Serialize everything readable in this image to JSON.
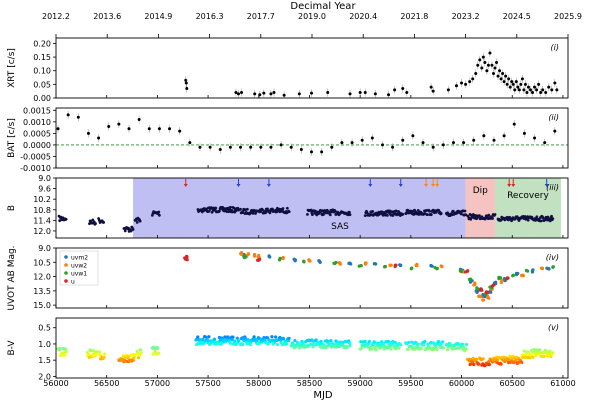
{
  "figure": {
    "top_axis_label": "Decimal Year",
    "top_ticks": [
      "2012.2",
      "2013.6",
      "2014.9",
      "2016.3",
      "2017.7",
      "2019.0",
      "2020.4",
      "2021.8",
      "2023.2",
      "2024.5",
      "2025.9"
    ],
    "bottom_axis_label": "MJD",
    "bottom_ticks": [
      "56000",
      "56500",
      "57000",
      "57500",
      "58000",
      "58500",
      "59000",
      "59500",
      "60000",
      "60500",
      "61000"
    ]
  },
  "chart_data": [
    {
      "panel": "(i)",
      "type": "scatter",
      "ylabel": "XRT [c/s]",
      "xlim": [
        56000,
        61050
      ],
      "ylim": [
        0,
        0.22
      ],
      "yticks": [
        "0.00",
        "0.05",
        "0.10",
        "0.15",
        "0.20"
      ],
      "ytick_values": [
        0,
        0.05,
        0.1,
        0.15,
        0.2
      ],
      "points": [
        [
          57280,
          0.065
        ],
        [
          57285,
          0.055
        ],
        [
          57290,
          0.035
        ],
        [
          57775,
          0.02
        ],
        [
          57800,
          0.015
        ],
        [
          57830,
          0.02
        ],
        [
          57960,
          0.015
        ],
        [
          58010,
          0.012
        ],
        [
          58050,
          0.018
        ],
        [
          58120,
          0.015
        ],
        [
          58150,
          0.02
        ],
        [
          58250,
          0.01
        ],
        [
          58400,
          0.015
        ],
        [
          58520,
          0.018
        ],
        [
          58680,
          0.02
        ],
        [
          58900,
          0.015
        ],
        [
          59000,
          0.02
        ],
        [
          59050,
          0.02
        ],
        [
          59150,
          0.015
        ],
        [
          59280,
          0.012
        ],
        [
          59340,
          0.03
        ],
        [
          59420,
          0.035
        ],
        [
          59460,
          0.02
        ],
        [
          59700,
          0.04
        ],
        [
          59720,
          0.025
        ],
        [
          59870,
          0.03
        ],
        [
          59950,
          0.045
        ],
        [
          60000,
          0.055
        ],
        [
          60040,
          0.05
        ],
        [
          60080,
          0.06
        ],
        [
          60110,
          0.07
        ],
        [
          60140,
          0.09
        ],
        [
          60160,
          0.12
        ],
        [
          60180,
          0.14
        ],
        [
          60200,
          0.11
        ],
        [
          60215,
          0.15
        ],
        [
          60230,
          0.13
        ],
        [
          60250,
          0.1
        ],
        [
          60265,
          0.12
        ],
        [
          60280,
          0.165
        ],
        [
          60300,
          0.12
        ],
        [
          60315,
          0.09
        ],
        [
          60330,
          0.11
        ],
        [
          60345,
          0.13
        ],
        [
          60360,
          0.08
        ],
        [
          60375,
          0.1
        ],
        [
          60390,
          0.07
        ],
        [
          60405,
          0.09
        ],
        [
          60420,
          0.06
        ],
        [
          60435,
          0.08
        ],
        [
          60450,
          0.05
        ],
        [
          60465,
          0.07
        ],
        [
          60480,
          0.04
        ],
        [
          60495,
          0.06
        ],
        [
          60510,
          0.05
        ],
        [
          60525,
          0.03
        ],
        [
          60540,
          0.06
        ],
        [
          60555,
          0.04
        ],
        [
          60570,
          0.03
        ],
        [
          60585,
          0.05
        ],
        [
          60600,
          0.07
        ],
        [
          60615,
          0.03
        ],
        [
          60630,
          0.05
        ],
        [
          60645,
          0.02
        ],
        [
          60660,
          0.04
        ],
        [
          60680,
          0.03
        ],
        [
          60700,
          0.02
        ],
        [
          60720,
          0.04
        ],
        [
          60740,
          0.03
        ],
        [
          60760,
          0.05
        ],
        [
          60780,
          0.02
        ],
        [
          60800,
          0.03
        ],
        [
          60830,
          0.02
        ],
        [
          60860,
          0.04
        ],
        [
          60890,
          0.03
        ],
        [
          60920,
          0.055
        ],
        [
          60940,
          0.03
        ]
      ]
    },
    {
      "panel": "(ii)",
      "type": "scatter",
      "ylabel": "BAT [c/s]",
      "xlim": [
        56000,
        61050
      ],
      "ylim": [
        -0.001,
        0.0016
      ],
      "yticks": [
        "-0.0010",
        "-0.0005",
        "0.0000",
        "0.0005",
        "0.0010",
        "0.0015"
      ],
      "ytick_values": [
        -0.001,
        -0.0005,
        0,
        0.0005,
        0.001,
        0.0015
      ],
      "reference_line": 0,
      "points": [
        [
          56020,
          0.0007
        ],
        [
          56120,
          0.0013
        ],
        [
          56220,
          0.0012
        ],
        [
          56320,
          0.0005
        ],
        [
          56420,
          0.0003
        ],
        [
          56520,
          0.0008
        ],
        [
          56620,
          0.0009
        ],
        [
          56720,
          0.0007
        ],
        [
          56820,
          0.0011
        ],
        [
          56920,
          0.0007
        ],
        [
          57020,
          0.0007
        ],
        [
          57120,
          0.0007
        ],
        [
          57220,
          0.0006
        ],
        [
          57320,
          0.0001
        ],
        [
          57420,
          -0.0001
        ],
        [
          57520,
          -0.0001
        ],
        [
          57620,
          -0.0002
        ],
        [
          57720,
          -0.0001
        ],
        [
          57820,
          -0.0001
        ],
        [
          57920,
          -0.0001
        ],
        [
          58020,
          -0.0001
        ],
        [
          58120,
          -0.0001
        ],
        [
          58220,
          0.0
        ],
        [
          58320,
          -0.0001
        ],
        [
          58420,
          -0.0002
        ],
        [
          58520,
          -0.0003
        ],
        [
          58620,
          -0.0003
        ],
        [
          58720,
          -0.0001
        ],
        [
          58820,
          0.0001
        ],
        [
          58920,
          0.0001
        ],
        [
          59020,
          0.0002
        ],
        [
          59120,
          0.0003
        ],
        [
          59220,
          0.0
        ],
        [
          59320,
          -0.0001
        ],
        [
          59420,
          0.0002
        ],
        [
          59520,
          0.0004
        ],
        [
          59620,
          0.0001
        ],
        [
          59720,
          -0.0001
        ],
        [
          59820,
          0.0
        ],
        [
          59920,
          0.0001
        ],
        [
          60020,
          0.0001
        ],
        [
          60120,
          0.0002
        ],
        [
          60220,
          0.0004
        ],
        [
          60320,
          0.0002
        ],
        [
          60420,
          0.0004
        ],
        [
          60520,
          0.0009
        ],
        [
          60620,
          0.0005
        ],
        [
          60720,
          0.0003
        ],
        [
          60820,
          0.0001
        ],
        [
          60920,
          0.0006
        ]
      ]
    },
    {
      "panel": "(iii)",
      "type": "scatter",
      "ylabel": "B",
      "xlim": [
        56000,
        61050
      ],
      "ylim": [
        12.4,
        9.0
      ],
      "inverted": true,
      "yticks": [
        "9.0",
        "9.6",
        "10.2",
        "10.8",
        "11.4",
        "12.0"
      ],
      "ytick_values": [
        9.0,
        9.6,
        10.2,
        10.8,
        11.4,
        12.0
      ],
      "regions": [
        {
          "label": "SAS",
          "x0": 56760,
          "x1": 60040,
          "color": "#b4b4f2"
        },
        {
          "label": "Dip",
          "x0": 60040,
          "x1": 60330,
          "color": "#f5b9b9"
        },
        {
          "label": "Recovery",
          "x0": 60330,
          "x1": 60980,
          "color": "#b6dcb6"
        }
      ],
      "arrows": [
        {
          "x": 57280,
          "color": "#dd2222"
        },
        {
          "x": 57800,
          "color": "#2244cc"
        },
        {
          "x": 58100,
          "color": "#2244cc"
        },
        {
          "x": 59100,
          "color": "#2244cc"
        },
        {
          "x": 59400,
          "color": "#2244cc"
        },
        {
          "x": 59650,
          "color": "#ff8800"
        },
        {
          "x": 59720,
          "color": "#ff8800"
        },
        {
          "x": 59760,
          "color": "#ff8800"
        },
        {
          "x": 60470,
          "color": "#dd2222"
        },
        {
          "x": 60510,
          "color": "#dd2222"
        },
        {
          "x": 60840,
          "color": "#2244cc"
        }
      ],
      "segments": [
        [
          56030,
          56100,
          11.3
        ],
        [
          56330,
          56390,
          11.5
        ],
        [
          56420,
          56470,
          11.4
        ],
        [
          56670,
          56760,
          11.9
        ],
        [
          56780,
          56830,
          11.4
        ],
        [
          56950,
          57020,
          11.0
        ],
        [
          57400,
          57800,
          10.8
        ],
        [
          57820,
          57980,
          10.9
        ],
        [
          58000,
          58300,
          10.85
        ],
        [
          58480,
          58900,
          10.95
        ],
        [
          59050,
          59420,
          11.0
        ],
        [
          59450,
          59800,
          10.95
        ],
        [
          59850,
          60040,
          11.0
        ],
        [
          60060,
          60330,
          11.2
        ],
        [
          60360,
          60900,
          11.3
        ]
      ]
    },
    {
      "panel": "(iv)",
      "type": "scatter",
      "ylabel": "UVOT AB Mag.",
      "xlim": [
        56000,
        61050
      ],
      "ylim": [
        15.3,
        9.0
      ],
      "inverted": true,
      "yticks": [
        "9.0",
        "10.5",
        "12.0",
        "13.5",
        "15.0"
      ],
      "ytick_values": [
        9.0,
        10.5,
        12.0,
        13.5,
        15.0
      ],
      "legend": [
        "uvm2",
        "uvw2",
        "uvw1",
        "u"
      ],
      "legend_placement": "top-left",
      "colors": [
        "#1f77b4",
        "#ff7f0e",
        "#2ca02c",
        "#d62728"
      ],
      "series": [
        {
          "name": "uvm2",
          "points": [
            [
              57850,
              9.8
            ],
            [
              58100,
              9.9
            ],
            [
              58350,
              10.3
            ],
            [
              58600,
              10.4
            ],
            [
              58900,
              10.6
            ],
            [
              59150,
              10.7
            ],
            [
              59400,
              10.8
            ],
            [
              59700,
              10.8
            ],
            [
              60000,
              11.3
            ],
            [
              60100,
              12.5
            ],
            [
              60150,
              13.6
            ],
            [
              60200,
              14.0
            ],
            [
              60240,
              14.1
            ],
            [
              60280,
              13.6
            ],
            [
              60330,
              12.7
            ],
            [
              60420,
              12.3
            ],
            [
              60550,
              11.7
            ],
            [
              60700,
              11.4
            ],
            [
              60850,
              11.2
            ]
          ]
        },
        {
          "name": "uvw2",
          "points": [
            [
              57830,
              9.6
            ],
            [
              57900,
              9.7
            ],
            [
              57950,
              9.8
            ],
            [
              58000,
              9.9
            ],
            [
              58250,
              10.1
            ],
            [
              58500,
              10.3
            ],
            [
              58800,
              10.6
            ],
            [
              59050,
              10.6
            ],
            [
              59300,
              10.7
            ],
            [
              59550,
              10.8
            ],
            [
              59800,
              10.9
            ],
            [
              60020,
              11.5
            ],
            [
              60120,
              12.8
            ],
            [
              60180,
              14.0
            ],
            [
              60220,
              14.5
            ],
            [
              60260,
              14.2
            ],
            [
              60300,
              13.3
            ],
            [
              60400,
              12.5
            ],
            [
              60600,
              11.9
            ],
            [
              60800,
              11.2
            ]
          ]
        },
        {
          "name": "uvw1",
          "points": [
            [
              57870,
              9.9
            ],
            [
              58200,
              10.2
            ],
            [
              58450,
              10.5
            ],
            [
              58750,
              10.6
            ],
            [
              59000,
              10.8
            ],
            [
              59250,
              11.0
            ],
            [
              59500,
              11.1
            ],
            [
              59750,
              11.1
            ],
            [
              60000,
              11.4
            ],
            [
              60090,
              12.3
            ],
            [
              60160,
              13.3
            ],
            [
              60230,
              13.8
            ],
            [
              60290,
              13.2
            ],
            [
              60380,
              12.2
            ],
            [
              60500,
              11.8
            ],
            [
              60650,
              11.4
            ],
            [
              60900,
              11.0
            ]
          ]
        },
        {
          "name": "u",
          "points": [
            [
              57280,
              10.0
            ],
            [
              57290,
              10.2
            ],
            [
              58000,
              10.2
            ],
            [
              59350,
              10.9
            ],
            [
              60050,
              11.5
            ],
            [
              60190,
              13.4
            ],
            [
              60250,
              13.6
            ],
            [
              60310,
              13.0
            ],
            [
              60450,
              12.2
            ]
          ]
        }
      ]
    },
    {
      "panel": "(v)",
      "type": "scatter",
      "ylabel": "B-V",
      "xlim": [
        56000,
        61050
      ],
      "ylim": [
        2.05,
        0.2
      ],
      "inverted": true,
      "yticks": [
        "0.5",
        "1.0",
        "1.5",
        "2.0"
      ],
      "ytick_values": [
        0.5,
        1.0,
        1.5,
        2.0
      ],
      "colormap": "jet (blue=bluer, red=redder)",
      "segments": [
        [
          56020,
          56100,
          1.25
        ],
        [
          56310,
          56400,
          1.3
        ],
        [
          56420,
          56480,
          1.35
        ],
        [
          56620,
          56780,
          1.45
        ],
        [
          56800,
          56840,
          1.3
        ],
        [
          56950,
          57010,
          1.2
        ],
        [
          57380,
          57800,
          0.9
        ],
        [
          57820,
          58300,
          0.9
        ],
        [
          58320,
          58480,
          1.0
        ],
        [
          58480,
          58900,
          1.0
        ],
        [
          59000,
          59400,
          1.05
        ],
        [
          59450,
          59820,
          1.05
        ],
        [
          59850,
          60050,
          1.1
        ],
        [
          60060,
          60330,
          1.55
        ],
        [
          60340,
          60600,
          1.5
        ],
        [
          60600,
          60900,
          1.3
        ]
      ]
    }
  ]
}
